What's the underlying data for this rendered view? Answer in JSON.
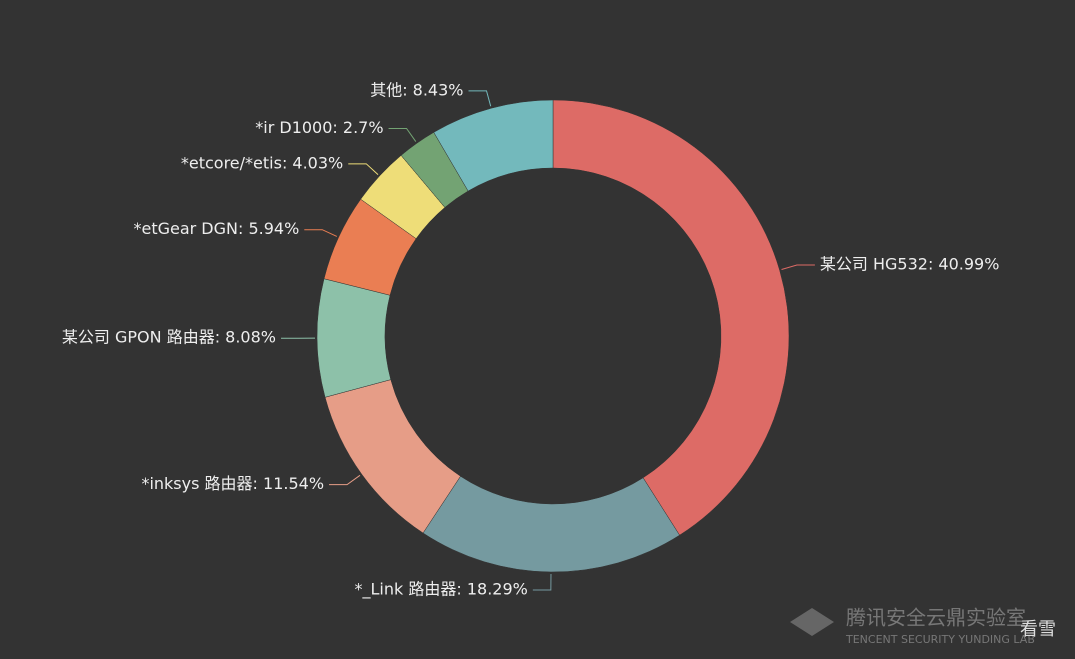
{
  "chart_data": {
    "type": "donut",
    "values": [
      40.99,
      18.29,
      11.54,
      8.08,
      5.94,
      4.03,
      2.7,
      8.43
    ],
    "value_labels": [
      "某公司 HG532: 40.99%",
      "*_Link 路由器: 18.29%",
      "*inksys 路由器: 11.54%",
      "某公司 GPON 路由器: 8.08%",
      "*etGear DGN: 5.94%",
      "*etcore/*etis: 4.03%",
      "*ir D1000: 2.7%",
      "其他: 8.43%"
    ],
    "colors": [
      "#dd6b66",
      "#759aa0",
      "#e69d87",
      "#8dc1a9",
      "#ea7e53",
      "#eedd78",
      "#73a373",
      "#73b9bc"
    ]
  },
  "watermark": {
    "title": "腾讯安全云鼎实验室",
    "subtitle": "TENCENT SECURITY YUNDING LAB",
    "badge": "看雪"
  }
}
